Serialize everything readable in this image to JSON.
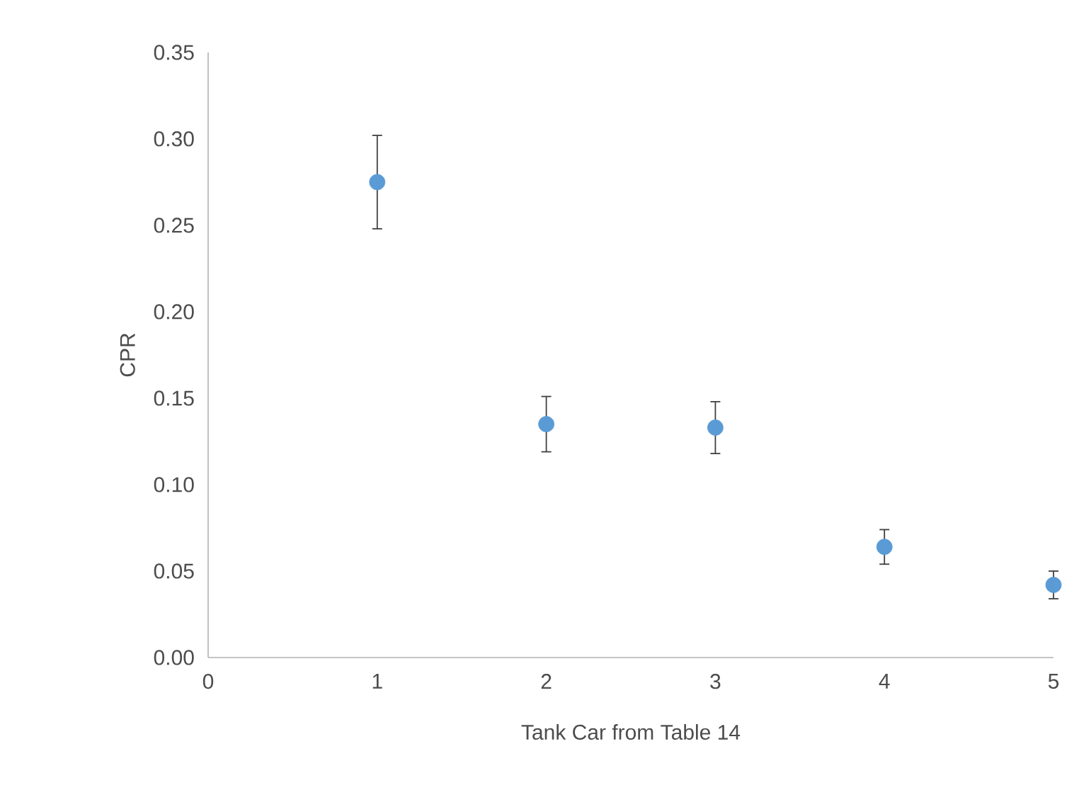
{
  "chart_data": {
    "type": "scatter",
    "xlabel": "Tank Car from Table 14",
    "ylabel": "CPR",
    "x": [
      1,
      2,
      3,
      4,
      5
    ],
    "values": [
      0.275,
      0.135,
      0.133,
      0.064,
      0.042
    ],
    "errors": [
      0.027,
      0.016,
      0.015,
      0.01,
      0.008
    ],
    "color": "#5b9bd5",
    "marker": "circle",
    "xlim": [
      0,
      5
    ],
    "xticks": [
      0,
      1,
      2,
      3,
      4,
      5
    ],
    "ylim": [
      0,
      0.35
    ],
    "yticks": [
      {
        "value": 0,
        "label": "0.00"
      },
      {
        "value": 0.05,
        "label": "0.05"
      },
      {
        "value": 0.1,
        "label": "0.10"
      },
      {
        "value": 0.15,
        "label": "0.15"
      },
      {
        "value": 0.2,
        "label": "0.20"
      },
      {
        "value": 0.25,
        "label": "0.25"
      },
      {
        "value": 0.3,
        "label": "0.30"
      },
      {
        "value": 0.35,
        "label": "0.35"
      }
    ],
    "grid": false
  }
}
